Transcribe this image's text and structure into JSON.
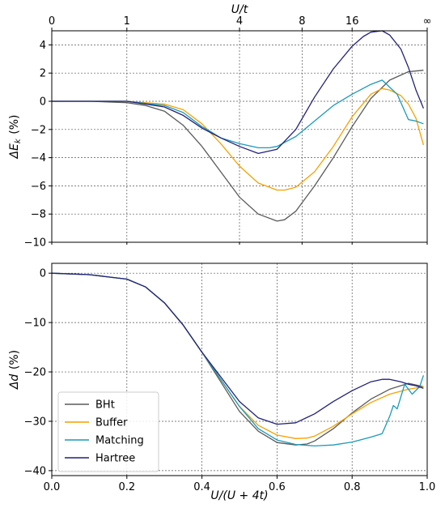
{
  "chart_data": [
    {
      "type": "line",
      "x_scale": "linear",
      "xlim": [
        0.0,
        1.0
      ],
      "ylim": [
        -10,
        5
      ],
      "ylabel_tex": "ΔE_k (%)",
      "ylabel_parts": {
        "delta": "ΔE",
        "sub": "k",
        "unit": "(%)"
      },
      "yticks": [
        4,
        2,
        0,
        -2,
        -4,
        -6,
        -8,
        -10
      ],
      "ytick_labels": [
        "4",
        "2",
        "0",
        "−2",
        "−4",
        "−6",
        "−8",
        "−10"
      ],
      "top_axis": {
        "label": "U/t",
        "ticks": [
          0.0,
          0.2,
          0.5,
          0.6667,
          0.8,
          1.0
        ],
        "tick_labels": [
          "0",
          "1",
          "4",
          "8",
          "16",
          "∞"
        ]
      },
      "grid": true,
      "series": [
        {
          "name": "BHt",
          "color": "#5a5a5a",
          "x": [
            0.0,
            0.1,
            0.2,
            0.25,
            0.3,
            0.35,
            0.4,
            0.45,
            0.5,
            0.55,
            0.6,
            0.62,
            0.65,
            0.7,
            0.75,
            0.8,
            0.85,
            0.9,
            0.95,
            0.99
          ],
          "y": [
            0,
            0,
            -0.1,
            -0.3,
            -0.7,
            -1.7,
            -3.2,
            -5.0,
            -6.8,
            -8.0,
            -8.5,
            -8.4,
            -7.8,
            -6.0,
            -4.0,
            -1.8,
            0.2,
            1.5,
            2.1,
            2.2
          ]
        },
        {
          "name": "Buffer",
          "color": "#f5a100",
          "x": [
            0.0,
            0.2,
            0.3,
            0.35,
            0.4,
            0.45,
            0.5,
            0.55,
            0.6,
            0.62,
            0.65,
            0.7,
            0.75,
            0.8,
            0.85,
            0.88,
            0.9,
            0.93,
            0.95,
            0.97,
            0.99
          ],
          "y": [
            0,
            0,
            -0.2,
            -0.6,
            -1.6,
            -3.0,
            -4.6,
            -5.8,
            -6.3,
            -6.3,
            -6.1,
            -5.0,
            -3.2,
            -1.1,
            0.5,
            0.9,
            0.8,
            0.4,
            -0.2,
            -1.2,
            -3.1
          ]
        },
        {
          "name": "Matching",
          "color": "#1a9ab8",
          "x": [
            0.0,
            0.2,
            0.3,
            0.35,
            0.4,
            0.42,
            0.45,
            0.5,
            0.55,
            0.58,
            0.6,
            0.65,
            0.7,
            0.75,
            0.8,
            0.85,
            0.88,
            0.9,
            0.92,
            0.95,
            0.97,
            0.99
          ],
          "y": [
            0,
            0,
            -0.3,
            -0.8,
            -1.8,
            -2.1,
            -2.6,
            -3.0,
            -3.3,
            -3.3,
            -3.2,
            -2.5,
            -1.4,
            -0.3,
            0.5,
            1.2,
            1.5,
            1.0,
            0.5,
            -1.3,
            -1.4,
            -1.6
          ]
        },
        {
          "name": "Hartree",
          "color": "#22227a",
          "x": [
            0.0,
            0.2,
            0.3,
            0.35,
            0.4,
            0.45,
            0.5,
            0.55,
            0.6,
            0.65,
            0.7,
            0.75,
            0.8,
            0.83,
            0.85,
            0.88,
            0.9,
            0.93,
            0.95,
            0.97,
            0.99
          ],
          "y": [
            0,
            0,
            -0.4,
            -1.0,
            -1.9,
            -2.6,
            -3.2,
            -3.7,
            -3.4,
            -2.0,
            0.3,
            2.3,
            3.9,
            4.6,
            4.9,
            5.0,
            4.7,
            3.7,
            2.4,
            0.8,
            -0.5
          ]
        }
      ]
    },
    {
      "type": "line",
      "x_scale": "linear",
      "xlim": [
        0.0,
        1.0
      ],
      "ylim": [
        -41,
        2
      ],
      "xlabel": "U/(U + 4t)",
      "ylabel_tex": "Δd (%)",
      "ylabel_parts": {
        "delta": "Δd",
        "unit": "(%)"
      },
      "xticks": [
        0.0,
        0.2,
        0.4,
        0.6,
        0.8,
        1.0
      ],
      "xtick_labels": [
        "0.0",
        "0.2",
        "0.4",
        "0.6",
        "0.8",
        "1.0"
      ],
      "yticks": [
        0,
        -10,
        -20,
        -30,
        -40
      ],
      "ytick_labels": [
        "0",
        "−10",
        "−20",
        "−30",
        "−40"
      ],
      "grid": true,
      "legend": "lower-left",
      "series": [
        {
          "name": "BHt",
          "color": "#5a5a5a",
          "x": [
            0.0,
            0.1,
            0.2,
            0.25,
            0.3,
            0.35,
            0.4,
            0.45,
            0.5,
            0.55,
            0.6,
            0.65,
            0.68,
            0.7,
            0.75,
            0.8,
            0.85,
            0.9,
            0.95,
            0.99
          ],
          "y": [
            0,
            -0.3,
            -1.2,
            -2.8,
            -6.0,
            -10.5,
            -16.0,
            -22.0,
            -28.0,
            -32.0,
            -34.3,
            -34.8,
            -34.6,
            -34.0,
            -31.5,
            -28.3,
            -25.5,
            -23.5,
            -22.3,
            -23.0
          ]
        },
        {
          "name": "Buffer",
          "color": "#f5a100",
          "x": [
            0.0,
            0.1,
            0.2,
            0.25,
            0.3,
            0.35,
            0.4,
            0.45,
            0.5,
            0.55,
            0.6,
            0.65,
            0.68,
            0.7,
            0.75,
            0.8,
            0.85,
            0.9,
            0.95,
            0.99
          ],
          "y": [
            0,
            -0.3,
            -1.2,
            -2.8,
            -6.0,
            -10.5,
            -16.0,
            -21.5,
            -27.0,
            -30.8,
            -32.8,
            -33.5,
            -33.4,
            -33.0,
            -31.0,
            -28.5,
            -26.2,
            -24.5,
            -23.5,
            -23.0
          ]
        },
        {
          "name": "Matching",
          "color": "#1a9ab8",
          "x": [
            0.0,
            0.1,
            0.2,
            0.25,
            0.3,
            0.35,
            0.4,
            0.45,
            0.5,
            0.55,
            0.6,
            0.65,
            0.7,
            0.75,
            0.8,
            0.85,
            0.88,
            0.9,
            0.91,
            0.92,
            0.94,
            0.96,
            0.98,
            0.99
          ],
          "y": [
            0,
            -0.3,
            -1.2,
            -2.8,
            -6.0,
            -10.5,
            -16.0,
            -21.5,
            -27.0,
            -31.5,
            -33.8,
            -34.7,
            -35.0,
            -34.8,
            -34.2,
            -33.2,
            -32.5,
            -29.0,
            -26.8,
            -27.5,
            -22.5,
            -24.5,
            -23.0,
            -20.7
          ]
        },
        {
          "name": "Hartree",
          "color": "#22227a",
          "x": [
            0.0,
            0.1,
            0.2,
            0.25,
            0.3,
            0.35,
            0.4,
            0.45,
            0.5,
            0.55,
            0.6,
            0.65,
            0.7,
            0.75,
            0.8,
            0.85,
            0.88,
            0.9,
            0.93,
            0.95,
            0.97,
            0.99
          ],
          "y": [
            0,
            -0.3,
            -1.2,
            -2.8,
            -6.0,
            -10.5,
            -16.0,
            -21.0,
            -26.0,
            -29.3,
            -30.6,
            -30.3,
            -28.5,
            -26.0,
            -23.8,
            -22.0,
            -21.5,
            -21.5,
            -22.0,
            -22.5,
            -22.8,
            -23.3
          ]
        }
      ]
    }
  ]
}
